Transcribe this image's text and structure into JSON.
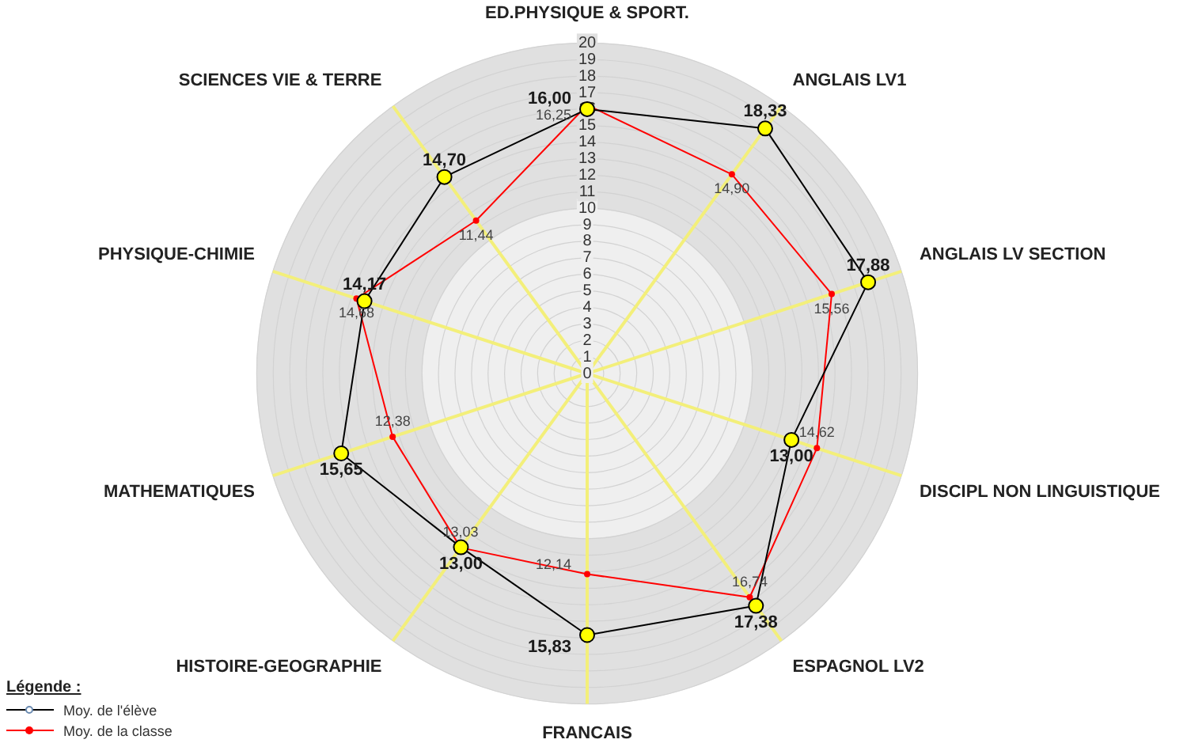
{
  "chart_data": {
    "type": "radar",
    "categories": [
      "ED.PHYSIQUE & SPORT.",
      "ANGLAIS LV1",
      "ANGLAIS LV SECTION",
      "DISCIPL NON LINGUISTIQUE",
      "ESPAGNOL LV2",
      "FRANCAIS",
      "HISTOIRE-GEOGRAPHIE",
      "MATHEMATIQUES",
      "PHYSIQUE-CHIMIE",
      "SCIENCES VIE & TERRE"
    ],
    "series": [
      {
        "name": "Moy. de l'élève",
        "color": "#000000",
        "values": [
          16.0,
          18.33,
          17.88,
          13.0,
          17.38,
          15.83,
          13.0,
          15.65,
          14.17,
          14.7
        ],
        "value_labels": [
          "16,00",
          "18,33",
          "17,88",
          "13,00",
          "17,38",
          "15,83",
          "13,00",
          "15,65",
          "14,17",
          "14,70"
        ]
      },
      {
        "name": "Moy. de la classe",
        "color": "#ff0000",
        "values": [
          16.25,
          14.9,
          15.56,
          14.62,
          16.74,
          12.14,
          13.03,
          12.38,
          14.68,
          11.44
        ],
        "value_labels": [
          "16,25",
          "14,90",
          "15,56",
          "14,62",
          "16,74",
          "12,14",
          "13,03",
          "12,38",
          "14,68",
          "11,44"
        ]
      }
    ],
    "ylim": [
      0,
      20
    ],
    "yticks": [
      0,
      1,
      2,
      3,
      4,
      5,
      6,
      7,
      8,
      9,
      10,
      11,
      12,
      13,
      14,
      15,
      16,
      17,
      18,
      19,
      20
    ],
    "grid": true,
    "marker": "circle",
    "legend": "bottom left",
    "legend_title": "Légende :"
  }
}
